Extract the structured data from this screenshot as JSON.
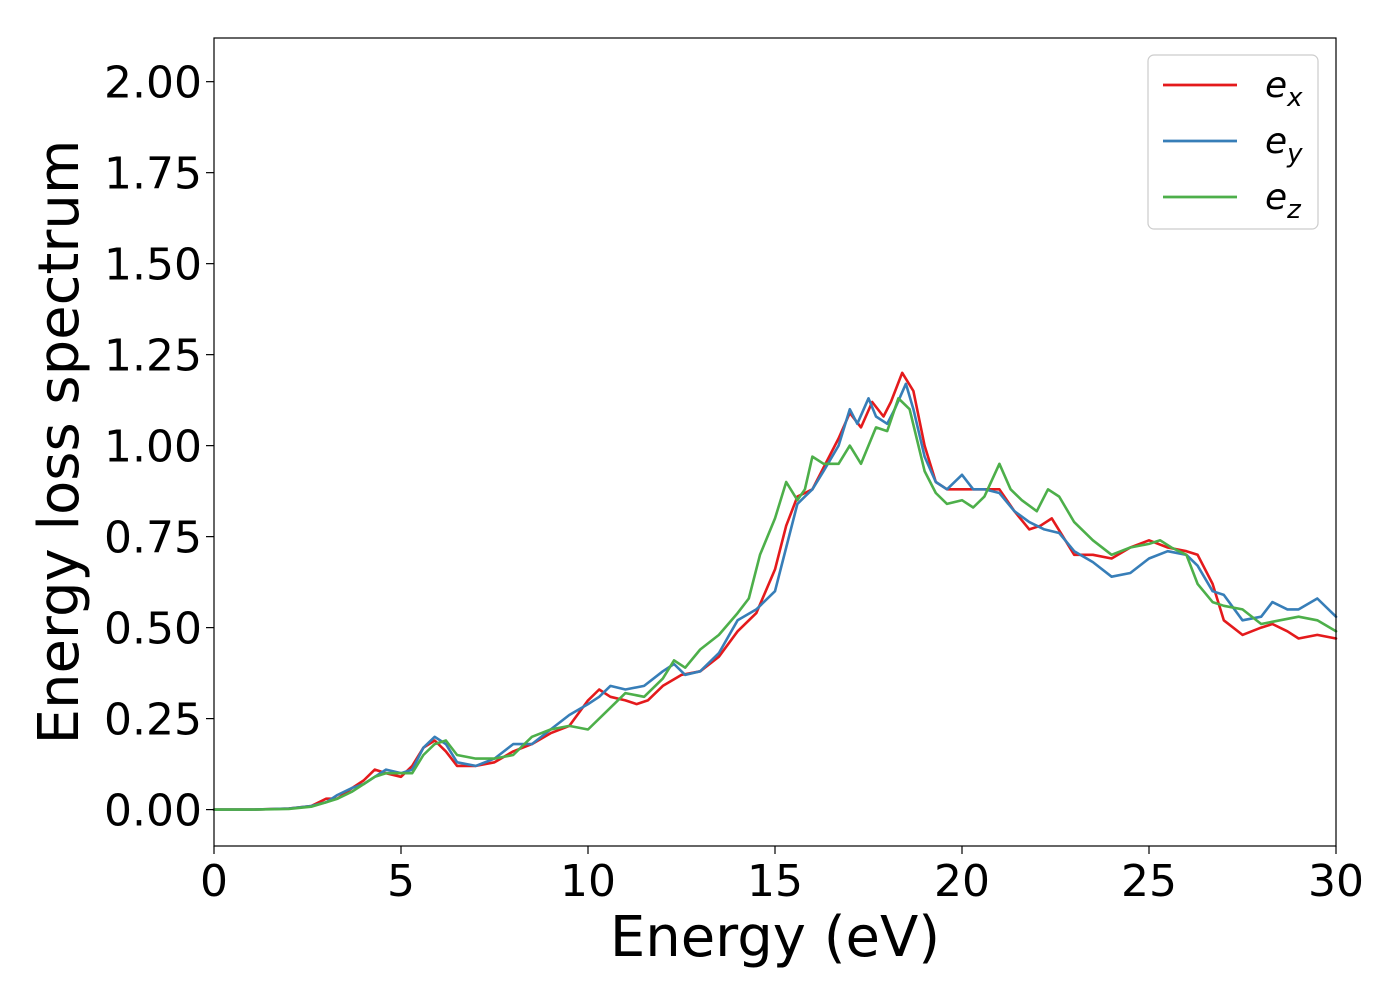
{
  "chart_data": {
    "type": "line",
    "xlabel": "Energy (eV)",
    "ylabel": "Energy loss spectrum",
    "xlim": [
      0,
      30
    ],
    "ylim": [
      -0.1,
      2.12
    ],
    "xticks": [
      "0",
      "5",
      "10",
      "15",
      "20",
      "25",
      "30"
    ],
    "yticks": [
      "0.00",
      "0.25",
      "0.50",
      "0.75",
      "1.00",
      "1.25",
      "1.50",
      "1.75",
      "2.00"
    ],
    "grid": false,
    "legend_position": "top-right",
    "series": [
      {
        "name": "e_x",
        "name_base": "e",
        "name_sub": "x",
        "color": "#e41a1c",
        "x": [
          0,
          1,
          2,
          2.6,
          3.0,
          3.3,
          3.7,
          4.0,
          4.3,
          4.6,
          5.0,
          5.3,
          5.6,
          5.9,
          6.2,
          6.5,
          7.0,
          7.5,
          8.0,
          8.5,
          9.0,
          9.5,
          10.0,
          10.3,
          10.6,
          11.0,
          11.3,
          11.6,
          12.0,
          12.5,
          13.0,
          13.5,
          14.0,
          14.5,
          15.0,
          15.3,
          15.6,
          15.8,
          16.0,
          16.3,
          16.7,
          17.0,
          17.3,
          17.6,
          17.9,
          18.1,
          18.4,
          18.7,
          19.0,
          19.3,
          19.6,
          20.0,
          20.5,
          21.0,
          21.4,
          21.8,
          22.1,
          22.4,
          22.7,
          23.0,
          23.5,
          24.0,
          24.5,
          25.0,
          25.5,
          26.0,
          26.3,
          26.7,
          27.0,
          27.5,
          28.0,
          28.3,
          28.7,
          29.0,
          29.5,
          30.0
        ],
        "y": [
          0.0,
          0.0,
          0.003,
          0.01,
          0.03,
          0.03,
          0.06,
          0.08,
          0.11,
          0.1,
          0.09,
          0.12,
          0.17,
          0.19,
          0.16,
          0.12,
          0.12,
          0.13,
          0.16,
          0.18,
          0.21,
          0.23,
          0.3,
          0.33,
          0.31,
          0.3,
          0.29,
          0.3,
          0.34,
          0.37,
          0.38,
          0.42,
          0.49,
          0.54,
          0.66,
          0.78,
          0.86,
          0.87,
          0.88,
          0.94,
          1.02,
          1.09,
          1.05,
          1.12,
          1.08,
          1.12,
          1.2,
          1.15,
          1.0,
          0.9,
          0.88,
          0.88,
          0.88,
          0.88,
          0.82,
          0.77,
          0.78,
          0.8,
          0.75,
          0.7,
          0.7,
          0.69,
          0.72,
          0.74,
          0.72,
          0.71,
          0.7,
          0.62,
          0.52,
          0.48,
          0.5,
          0.51,
          0.49,
          0.47,
          0.48,
          0.47
        ]
      },
      {
        "name": "e_y",
        "name_base": "e",
        "name_sub": "y",
        "color": "#377eb8",
        "x": [
          0,
          1,
          2,
          2.6,
          3.0,
          3.3,
          3.7,
          4.0,
          4.3,
          4.6,
          5.0,
          5.3,
          5.6,
          5.9,
          6.2,
          6.5,
          7.0,
          7.5,
          8.0,
          8.5,
          9.0,
          9.5,
          10.0,
          10.3,
          10.6,
          11.0,
          11.5,
          12.0,
          12.3,
          12.6,
          13.0,
          13.5,
          14.0,
          14.5,
          15.0,
          15.3,
          15.6,
          15.8,
          16.0,
          16.3,
          16.7,
          17.0,
          17.2,
          17.5,
          17.7,
          18.0,
          18.2,
          18.5,
          18.7,
          19.0,
          19.3,
          19.6,
          20.0,
          20.3,
          20.6,
          21.0,
          21.4,
          21.8,
          22.2,
          22.6,
          23.0,
          23.5,
          24.0,
          24.5,
          25.0,
          25.5,
          26.0,
          26.3,
          26.7,
          27.0,
          27.5,
          28.0,
          28.3,
          28.7,
          29.0,
          29.5,
          30.0
        ],
        "y": [
          0.0,
          0.0,
          0.003,
          0.01,
          0.02,
          0.04,
          0.06,
          0.07,
          0.09,
          0.11,
          0.1,
          0.11,
          0.17,
          0.2,
          0.18,
          0.13,
          0.12,
          0.14,
          0.18,
          0.18,
          0.22,
          0.26,
          0.29,
          0.31,
          0.34,
          0.33,
          0.34,
          0.38,
          0.4,
          0.37,
          0.38,
          0.43,
          0.52,
          0.55,
          0.6,
          0.72,
          0.84,
          0.86,
          0.88,
          0.93,
          1.0,
          1.1,
          1.06,
          1.13,
          1.08,
          1.06,
          1.1,
          1.17,
          1.1,
          0.97,
          0.9,
          0.88,
          0.92,
          0.88,
          0.88,
          0.87,
          0.82,
          0.79,
          0.77,
          0.76,
          0.71,
          0.68,
          0.64,
          0.65,
          0.69,
          0.71,
          0.7,
          0.67,
          0.6,
          0.59,
          0.52,
          0.53,
          0.57,
          0.55,
          0.55,
          0.58,
          0.53
        ]
      },
      {
        "name": "e_z",
        "name_base": "e",
        "name_sub": "z",
        "color": "#4daf4a",
        "x": [
          0,
          1,
          2,
          2.6,
          3.0,
          3.3,
          3.7,
          4.0,
          4.3,
          4.6,
          5.0,
          5.3,
          5.6,
          5.9,
          6.2,
          6.5,
          7.0,
          7.5,
          8.0,
          8.5,
          9.0,
          9.5,
          10.0,
          10.5,
          11.0,
          11.5,
          12.0,
          12.3,
          12.6,
          13.0,
          13.5,
          14.0,
          14.3,
          14.6,
          15.0,
          15.3,
          15.6,
          15.8,
          16.0,
          16.3,
          16.7,
          17.0,
          17.3,
          17.7,
          18.0,
          18.3,
          18.6,
          19.0,
          19.3,
          19.6,
          20.0,
          20.3,
          20.6,
          21.0,
          21.3,
          21.6,
          22.0,
          22.3,
          22.6,
          23.0,
          23.5,
          24.0,
          24.5,
          25.0,
          25.3,
          25.6,
          26.0,
          26.3,
          26.7,
          27.0,
          27.5,
          28.0,
          28.5,
          29.0,
          29.5,
          30.0
        ],
        "y": [
          0.0,
          0.0,
          0.002,
          0.008,
          0.02,
          0.03,
          0.05,
          0.07,
          0.09,
          0.1,
          0.1,
          0.1,
          0.15,
          0.18,
          0.19,
          0.15,
          0.14,
          0.14,
          0.15,
          0.2,
          0.22,
          0.23,
          0.22,
          0.27,
          0.32,
          0.31,
          0.36,
          0.41,
          0.39,
          0.44,
          0.48,
          0.54,
          0.58,
          0.7,
          0.8,
          0.9,
          0.85,
          0.88,
          0.97,
          0.95,
          0.95,
          1.0,
          0.95,
          1.05,
          1.04,
          1.13,
          1.1,
          0.93,
          0.87,
          0.84,
          0.85,
          0.83,
          0.86,
          0.95,
          0.88,
          0.85,
          0.82,
          0.88,
          0.86,
          0.79,
          0.74,
          0.7,
          0.72,
          0.73,
          0.74,
          0.72,
          0.7,
          0.62,
          0.57,
          0.56,
          0.55,
          0.51,
          0.52,
          0.53,
          0.52,
          0.49
        ]
      }
    ]
  }
}
